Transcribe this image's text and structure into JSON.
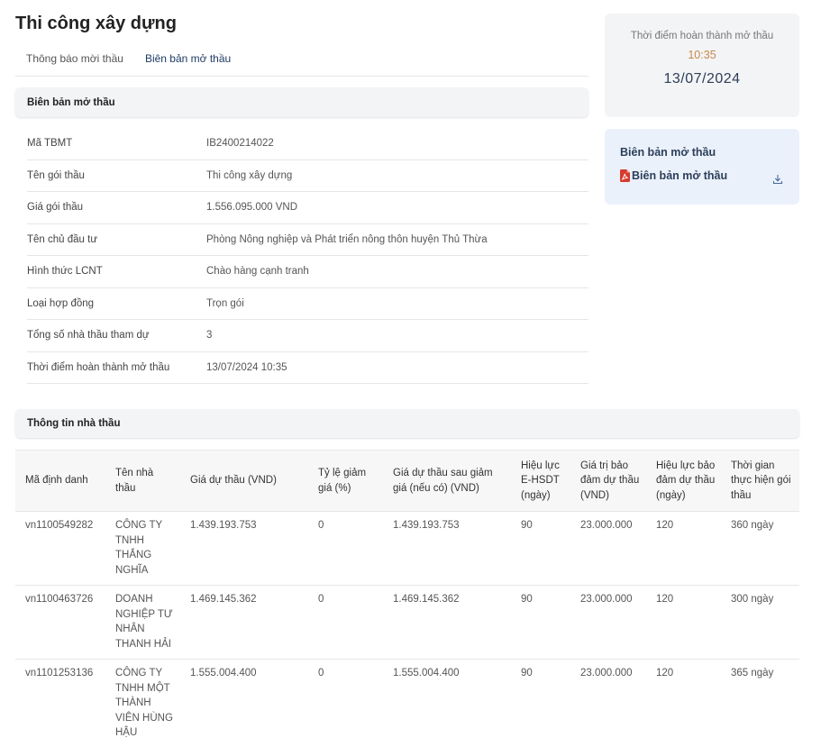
{
  "page": {
    "title": "Thi công xây dựng"
  },
  "tabs": [
    {
      "label": "Thông báo mời thầu"
    },
    {
      "label": "Biên bản mở thầu"
    }
  ],
  "opening_section": {
    "title": "Biên bản mở thầu"
  },
  "info_rows": [
    {
      "label": "Mã TBMT",
      "value": "IB2400214022"
    },
    {
      "label": "Tên gói thầu",
      "value": "Thi công xây dựng"
    },
    {
      "label": "Giá gói thầu",
      "value": "1.556.095.000 VND"
    },
    {
      "label": "Tên chủ đầu tư",
      "value": "Phòng Nông nghiệp và Phát triển nông thôn huyện Thủ Thừa"
    },
    {
      "label": "Hình thức LCNT",
      "value": "Chào hàng cạnh tranh"
    },
    {
      "label": "Loại hợp đồng",
      "value": "Trọn gói"
    },
    {
      "label": "Tổng số nhà thầu tham dự",
      "value": "3"
    },
    {
      "label": "Thời điểm hoàn thành mở thầu",
      "value": "13/07/2024 10:35"
    }
  ],
  "completion_card": {
    "label": "Thời điểm hoàn thành mở thầu",
    "time": "10:35",
    "date": "13/07/2024"
  },
  "doc_card": {
    "title": "Biên bản mở thầu",
    "file_label": "Biên bản mở thầu",
    "file_icon": "pdf-icon",
    "action_icon": "download-icon"
  },
  "contractor_section": {
    "title": "Thông tin nhà thầu"
  },
  "bid_table": {
    "headers": [
      "Mã định danh",
      "Tên nhà thầu",
      "Giá dự thầu (VND)",
      "Tỷ lệ giảm giá (%)",
      "Giá dự thầu sau giảm giá (nếu có) (VND)",
      "Hiệu lực E-HSDT (ngày)",
      "Giá trị bảo đảm dự thầu (VND)",
      "Hiệu lực bảo đảm dự thầu (ngày)",
      "Thời gian thực hiện gói thầu"
    ],
    "rows": [
      [
        "vn1100549282",
        "CÔNG TY TNHH THẮNG NGHĨA",
        "1.439.193.753",
        "0",
        "1.439.193.753",
        "90",
        "23.000.000",
        "120",
        "360 ngày"
      ],
      [
        "vn1100463726",
        "DOANH NGHIỆP TƯ NHÂN THANH HẢI",
        "1.469.145.362",
        "0",
        "1.469.145.362",
        "90",
        "23.000.000",
        "120",
        "300 ngày"
      ],
      [
        "vn1101253136",
        "CÔNG TY TNHH MỘT THÀNH VIÊN HÙNG HẬU",
        "1.555.004.400",
        "0",
        "1.555.004.400",
        "90",
        "23.000.000",
        "120",
        "365 ngày"
      ]
    ]
  },
  "colors": {
    "accent_time": "#c7884a",
    "date_text": "#2c3e58",
    "doc_card_bg": "#eaf1fb",
    "pdf_red": "#d63b2f"
  }
}
